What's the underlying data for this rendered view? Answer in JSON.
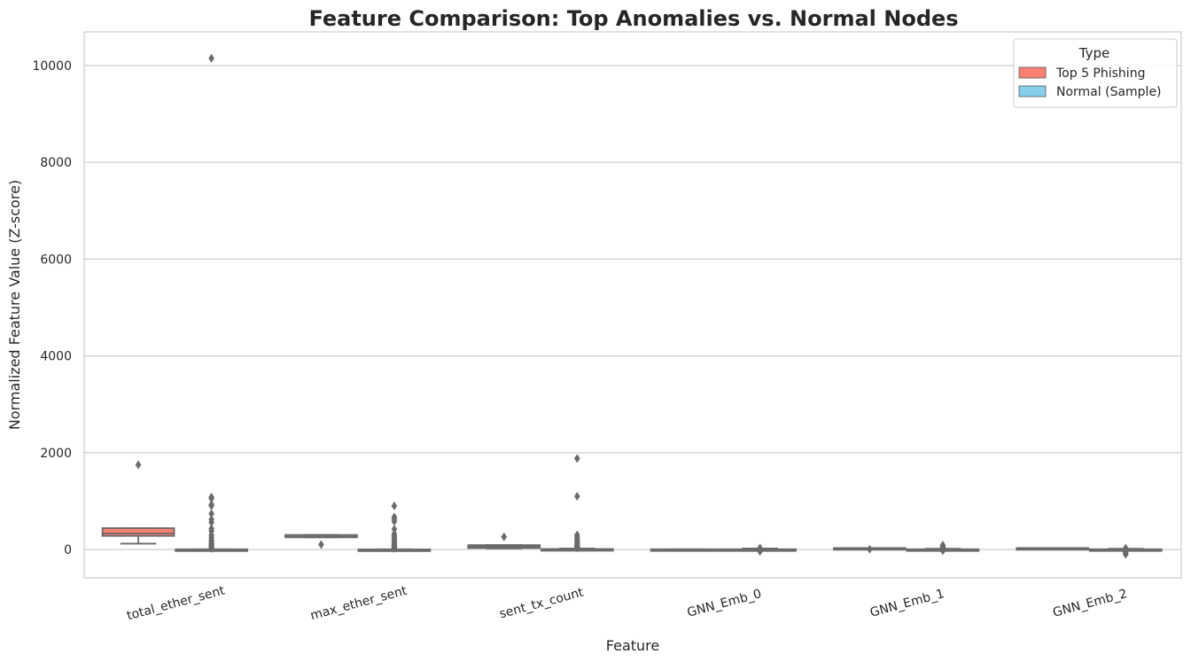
{
  "chart_data": {
    "type": "box",
    "title": "Feature Comparison: Top Anomalies vs. Normal Nodes",
    "xlabel": "Feature",
    "ylabel": "Normalized Feature Value (Z-score)",
    "ylim": [
      -600,
      10700
    ],
    "yticks": [
      0,
      2000,
      4000,
      6000,
      8000,
      10000
    ],
    "grid": "horizontal",
    "legend": {
      "title": "Type",
      "placement": "top-right"
    },
    "categories": [
      "total_ether_sent",
      "max_ether_sent",
      "sent_tx_count",
      "GNN_Emb_0",
      "GNN_Emb_1",
      "GNN_Emb_2"
    ],
    "series": [
      {
        "name": "Top 5 Phishing",
        "color": "#fa8072",
        "boxes": [
          {
            "min": 120,
            "q1": 280,
            "median": 330,
            "q3": 440,
            "max": 440,
            "outliers": [
              1750
            ]
          },
          {
            "min": 250,
            "q1": 250,
            "median": 265,
            "q3": 300,
            "max": 300,
            "outliers": [
              100
            ]
          },
          {
            "min": 20,
            "q1": 30,
            "median": 60,
            "q3": 90,
            "max": 90,
            "outliers": [
              260
            ]
          },
          {
            "min": -5,
            "q1": -5,
            "median": 0,
            "q3": 5,
            "max": 5,
            "outliers": []
          },
          {
            "min": 15,
            "q1": 20,
            "median": 25,
            "q3": 30,
            "max": 30,
            "outliers": [
              5
            ]
          },
          {
            "min": 15,
            "q1": 20,
            "median": 25,
            "q3": 30,
            "max": 30,
            "outliers": []
          }
        ]
      },
      {
        "name": "Normal (Sample)",
        "color": "#87ceeb",
        "boxes": [
          {
            "min": 0,
            "q1": 0,
            "median": 0,
            "q3": 3,
            "max": 5,
            "outliers": [
              10150,
              1080,
              1050,
              930,
              900,
              740,
              620,
              560,
              430,
              380,
              300,
              250,
              200,
              170,
              130,
              100,
              80,
              60,
              40,
              30,
              20
            ]
          },
          {
            "min": 0,
            "q1": 0,
            "median": 0,
            "q3": 2,
            "max": 4,
            "outliers": [
              900,
              670,
              630,
              580,
              420,
              320,
              280,
              240,
              200,
              170,
              140,
              110,
              90,
              70,
              50,
              30,
              20
            ]
          },
          {
            "min": 0,
            "q1": 0,
            "median": 0,
            "q3": 10,
            "max": 20,
            "outliers": [
              1880,
              1100,
              300,
              260,
              220,
              190,
              160,
              130,
              110,
              90,
              70,
              50,
              40,
              30
            ]
          },
          {
            "min": -20,
            "q1": -5,
            "median": 0,
            "q3": 5,
            "max": 20,
            "outliers": [
              30,
              25,
              -25,
              -35,
              -40
            ]
          },
          {
            "min": -15,
            "q1": -3,
            "median": 0,
            "q3": 5,
            "max": 15,
            "outliers": [
              90,
              70,
              55,
              40,
              30,
              20,
              -20,
              -25
            ]
          },
          {
            "min": -15,
            "q1": -5,
            "median": 0,
            "q3": 5,
            "max": 15,
            "outliers": [
              25,
              20,
              -50,
              -80,
              -100
            ]
          }
        ]
      }
    ]
  }
}
